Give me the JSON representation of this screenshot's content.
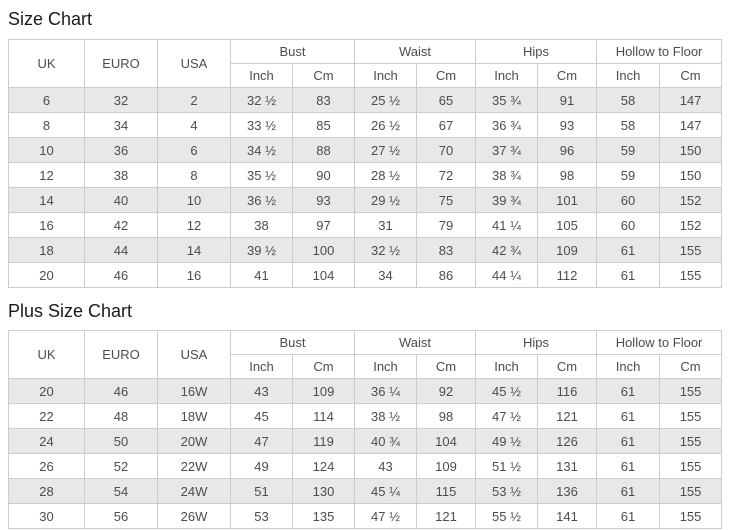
{
  "colors": {
    "stripe_row": "#e8e8e8",
    "border": "#cccccc",
    "cell_text": "#4d4d4d",
    "title_text": "#1a1a1a"
  },
  "columns": {
    "uk": "UK",
    "euro": "EURO",
    "usa": "USA",
    "groups": [
      {
        "label": "Bust"
      },
      {
        "label": "Waist"
      },
      {
        "label": "Hips"
      },
      {
        "label": "Hollow to Floor"
      }
    ],
    "sub": {
      "inch": "Inch",
      "cm": "Cm"
    }
  },
  "size_chart": {
    "title": "Size Chart",
    "rows": [
      [
        "6",
        "32",
        "2",
        "32 ½",
        "83",
        "25 ½",
        "65",
        "35 ¾",
        "91",
        "58",
        "147"
      ],
      [
        "8",
        "34",
        "4",
        "33 ½",
        "85",
        "26 ½",
        "67",
        "36 ¾",
        "93",
        "58",
        "147"
      ],
      [
        "10",
        "36",
        "6",
        "34 ½",
        "88",
        "27 ½",
        "70",
        "37 ¾",
        "96",
        "59",
        "150"
      ],
      [
        "12",
        "38",
        "8",
        "35 ½",
        "90",
        "28 ½",
        "72",
        "38 ¾",
        "98",
        "59",
        "150"
      ],
      [
        "14",
        "40",
        "10",
        "36 ½",
        "93",
        "29 ½",
        "75",
        "39 ¾",
        "101",
        "60",
        "152"
      ],
      [
        "16",
        "42",
        "12",
        "38",
        "97",
        "31",
        "79",
        "41 ¼",
        "105",
        "60",
        "152"
      ],
      [
        "18",
        "44",
        "14",
        "39 ½",
        "100",
        "32 ½",
        "83",
        "42 ¾",
        "109",
        "61",
        "155"
      ],
      [
        "20",
        "46",
        "16",
        "41",
        "104",
        "34",
        "86",
        "44 ¼",
        "112",
        "61",
        "155"
      ]
    ]
  },
  "plus_size_chart": {
    "title": "Plus Size Chart",
    "rows": [
      [
        "20",
        "46",
        "16W",
        "43",
        "109",
        "36 ¼",
        "92",
        "45 ½",
        "116",
        "61",
        "155"
      ],
      [
        "22",
        "48",
        "18W",
        "45",
        "114",
        "38 ½",
        "98",
        "47 ½",
        "121",
        "61",
        "155"
      ],
      [
        "24",
        "50",
        "20W",
        "47",
        "119",
        "40 ¾",
        "104",
        "49 ½",
        "126",
        "61",
        "155"
      ],
      [
        "26",
        "52",
        "22W",
        "49",
        "124",
        "43",
        "109",
        "51 ½",
        "131",
        "61",
        "155"
      ],
      [
        "28",
        "54",
        "24W",
        "51",
        "130",
        "45 ¼",
        "115",
        "53 ½",
        "136",
        "61",
        "155"
      ],
      [
        "30",
        "56",
        "26W",
        "53",
        "135",
        "47 ½",
        "121",
        "55 ½",
        "141",
        "61",
        "155"
      ]
    ]
  }
}
